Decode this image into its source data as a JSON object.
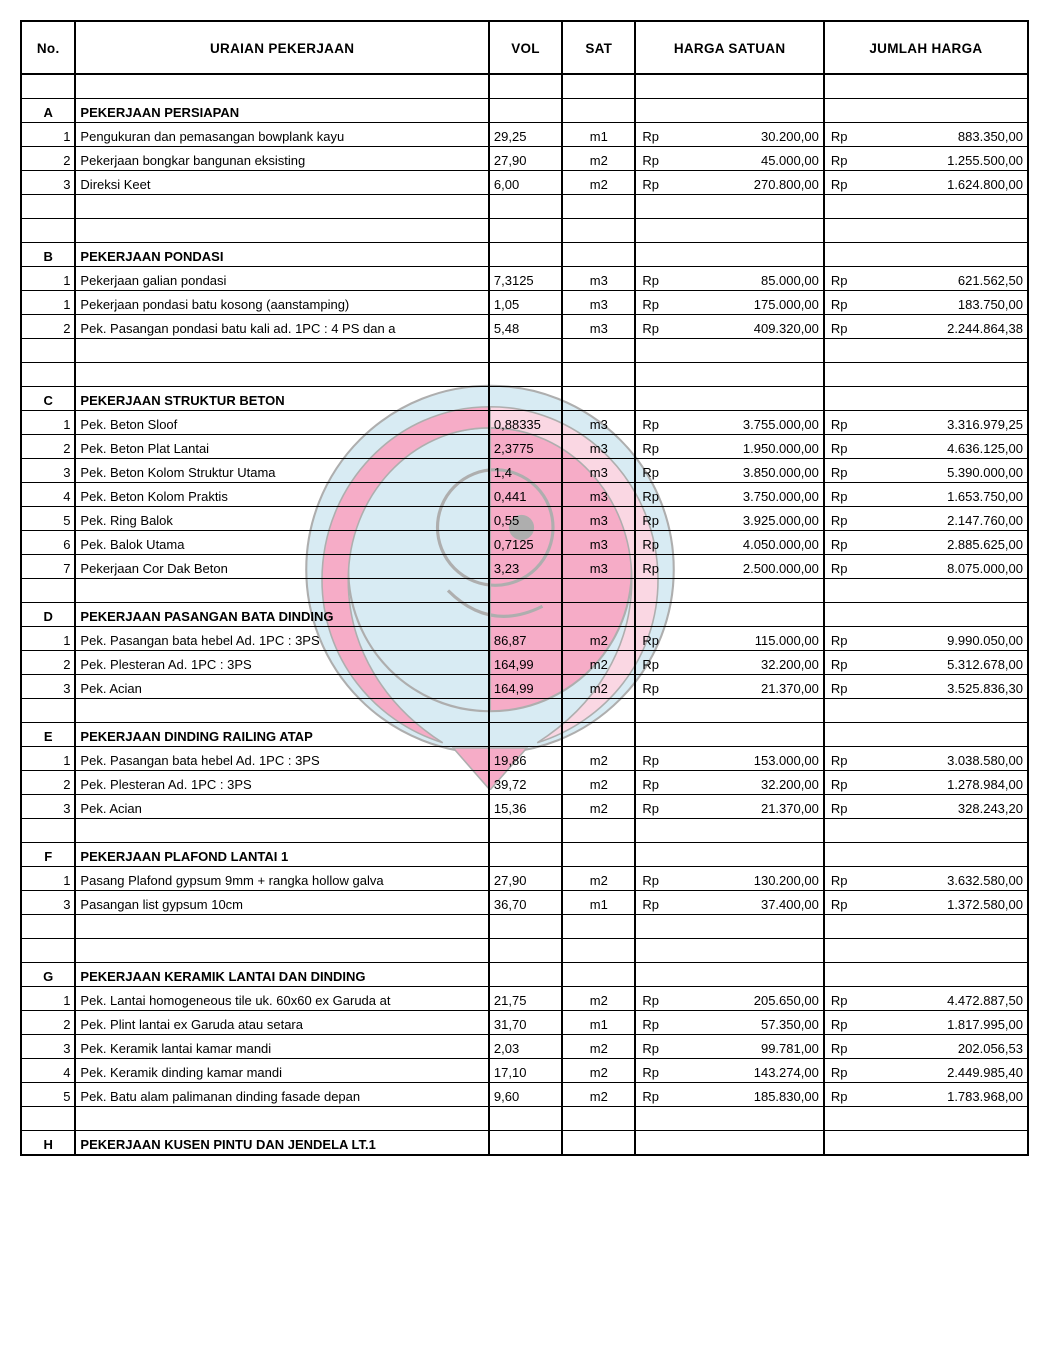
{
  "headers": {
    "no": "No.",
    "uraian": "URAIAN PEKERJAAN",
    "vol": "VOL",
    "sat": "SAT",
    "harga_satuan": "HARGA SATUAN",
    "jumlah_harga": "JUMLAH HARGA"
  },
  "currency": "Rp",
  "sections": [
    {
      "code": "A",
      "title": "PEKERJAAN PERSIAPAN",
      "rows": [
        {
          "no": "1",
          "uraian": "Pengukuran dan pemasangan bowplank kayu",
          "vol": "29,25",
          "sat": "m1",
          "hs": "30.200,00",
          "jh": "883.350,00"
        },
        {
          "no": "2",
          "uraian": "Pekerjaan bongkar bangunan eksisting",
          "vol": "27,90",
          "sat": "m2",
          "hs": "45.000,00",
          "jh": "1.255.500,00"
        },
        {
          "no": "3",
          "uraian": "Direksi Keet",
          "vol": "6,00",
          "sat": "m2",
          "hs": "270.800,00",
          "jh": "1.624.800,00"
        }
      ],
      "trailing_blanks": 2
    },
    {
      "code": "B",
      "title": "PEKERJAAN PONDASI",
      "rows": [
        {
          "no": "1",
          "uraian": "Pekerjaan galian pondasi",
          "vol": "7,3125",
          "sat": "m3",
          "hs": "85.000,00",
          "jh": "621.562,50"
        },
        {
          "no": "1",
          "uraian": "Pekerjaan pondasi batu kosong (aanstamping)",
          "vol": "1,05",
          "sat": "m3",
          "hs": "175.000,00",
          "jh": "183.750,00"
        },
        {
          "no": "2",
          "uraian": "Pek. Pasangan pondasi batu kali ad. 1PC : 4 PS dan a",
          "vol": "5,48",
          "sat": "m3",
          "hs": "409.320,00",
          "jh": "2.244.864,38"
        }
      ],
      "trailing_blanks": 2
    },
    {
      "code": "C",
      "title": "PEKERJAAN STRUKTUR BETON",
      "rows": [
        {
          "no": "1",
          "uraian": "Pek. Beton Sloof",
          "vol": "0,88335",
          "sat": "m3",
          "hs": "3.755.000,00",
          "jh": "3.316.979,25"
        },
        {
          "no": "2",
          "uraian": "Pek. Beton Plat Lantai",
          "vol": "2,3775",
          "sat": "m3",
          "hs": "1.950.000,00",
          "jh": "4.636.125,00"
        },
        {
          "no": "3",
          "uraian": "Pek. Beton Kolom Struktur Utama",
          "vol": "1,4",
          "sat": "m3",
          "hs": "3.850.000,00",
          "jh": "5.390.000,00"
        },
        {
          "no": "4",
          "uraian": "Pek. Beton Kolom Praktis",
          "vol": "0,441",
          "sat": "m3",
          "hs": "3.750.000,00",
          "jh": "1.653.750,00"
        },
        {
          "no": "5",
          "uraian": "Pek. Ring Balok",
          "vol": "0,55",
          "sat": "m3",
          "hs": "3.925.000,00",
          "jh": "2.147.760,00"
        },
        {
          "no": "6",
          "uraian": "Pek. Balok Utama",
          "vol": "0,7125",
          "sat": "m3",
          "hs": "4.050.000,00",
          "jh": "2.885.625,00"
        },
        {
          "no": "7",
          "uraian": "Pekerjaan Cor Dak Beton",
          "vol": "3,23",
          "sat": "m3",
          "hs": "2.500.000,00",
          "jh": "8.075.000,00"
        }
      ],
      "trailing_blanks": 1
    },
    {
      "code": "D",
      "title": "PEKERJAAN PASANGAN BATA DINDING",
      "rows": [
        {
          "no": "1",
          "uraian": "Pek. Pasangan bata hebel Ad. 1PC : 3PS",
          "vol": "86,87",
          "sat": "m2",
          "hs": "115.000,00",
          "jh": "9.990.050,00"
        },
        {
          "no": "2",
          "uraian": "Pek. Plesteran Ad. 1PC : 3PS",
          "vol": "164,99",
          "sat": "m2",
          "hs": "32.200,00",
          "jh": "5.312.678,00"
        },
        {
          "no": "3",
          "uraian": "Pek. Acian",
          "vol": "164,99",
          "sat": "m2",
          "hs": "21.370,00",
          "jh": "3.525.836,30"
        }
      ],
      "trailing_blanks": 1
    },
    {
      "code": "E",
      "title": "PEKERJAAN DINDING RAILING ATAP",
      "rows": [
        {
          "no": "1",
          "uraian": "Pek. Pasangan bata hebel Ad. 1PC : 3PS",
          "vol": "19,86",
          "sat": "m2",
          "hs": "153.000,00",
          "jh": "3.038.580,00"
        },
        {
          "no": "2",
          "uraian": "Pek. Plesteran Ad. 1PC : 3PS",
          "vol": "39,72",
          "sat": "m2",
          "hs": "32.200,00",
          "jh": "1.278.984,00"
        },
        {
          "no": "3",
          "uraian": "Pek. Acian",
          "vol": "15,36",
          "sat": "m2",
          "hs": "21.370,00",
          "jh": "328.243,20"
        }
      ],
      "trailing_blanks": 1
    },
    {
      "code": "F",
      "title": "PEKERJAAN PLAFOND LANTAI 1",
      "rows": [
        {
          "no": "1",
          "uraian": "Pasang Plafond gypsum 9mm + rangka hollow galva",
          "vol": "27,90",
          "sat": "m2",
          "hs": "130.200,00",
          "jh": "3.632.580,00"
        },
        {
          "no": "3",
          "uraian": "Pasangan list gypsum 10cm",
          "vol": "36,70",
          "sat": "m1",
          "hs": "37.400,00",
          "jh": "1.372.580,00"
        }
      ],
      "trailing_blanks": 2
    },
    {
      "code": "G",
      "title": "PEKERJAAN KERAMIK LANTAI DAN DINDING",
      "rows": [
        {
          "no": "1",
          "uraian": "Pek. Lantai homogeneous tile uk. 60x60 ex Garuda at",
          "vol": "21,75",
          "sat": "m2",
          "hs": "205.650,00",
          "jh": "4.472.887,50"
        },
        {
          "no": "2",
          "uraian": "Pek. Plint lantai ex Garuda atau setara",
          "vol": "31,70",
          "sat": "m1",
          "hs": "57.350,00",
          "jh": "1.817.995,00"
        },
        {
          "no": "3",
          "uraian": "Pek. Keramik lantai kamar mandi",
          "vol": "2,03",
          "sat": "m2",
          "hs": "99.781,00",
          "jh": "202.056,53"
        },
        {
          "no": "4",
          "uraian": "Pek. Keramik dinding kamar mandi",
          "vol": "17,10",
          "sat": "m2",
          "hs": "143.274,00",
          "jh": "2.449.985,40"
        },
        {
          "no": "5",
          "uraian": "Pek. Batu alam palimanan dinding fasade depan",
          "vol": "9,60",
          "sat": "m2",
          "hs": "185.830,00",
          "jh": "1.783.968,00"
        }
      ],
      "trailing_blanks": 1
    },
    {
      "code": "H",
      "title": "PEKERJAAN KUSEN PINTU DAN JENDELA LT.1",
      "rows": [],
      "trailing_blanks": 0
    }
  ],
  "watermark": {
    "outer_fill": "#b9dcea",
    "inner_fill": "#f06a9b",
    "highlight": "#f6b7cd",
    "stroke": "#6d6d6d",
    "opacity": 0.55
  }
}
